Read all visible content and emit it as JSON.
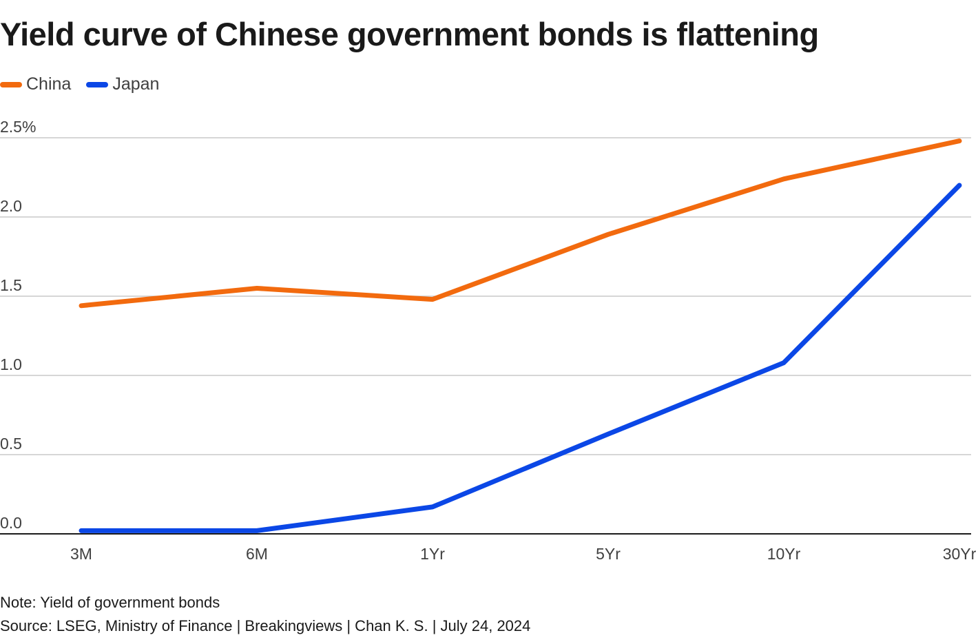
{
  "header": {
    "title": "Yield curve of Chinese government bonds is flattening"
  },
  "legend": [
    {
      "label": "China",
      "color": "#f26a0e"
    },
    {
      "label": "Japan",
      "color": "#0b47e6"
    }
  ],
  "footer": {
    "note": "Note: Yield of government bonds",
    "source": "Source: LSEG, Ministry of Finance | Breakingviews | Chan K. S. | July 24, 2024"
  },
  "chart_data": {
    "type": "line",
    "title": "Yield curve of Chinese government bonds is flattening",
    "xlabel": "",
    "ylabel": "",
    "categories": [
      "3M",
      "6M",
      "1Yr",
      "5Yr",
      "10Yr",
      "30Yr"
    ],
    "y_ticks": [
      0,
      0.5,
      1.0,
      1.5,
      2.0,
      2.5
    ],
    "y_tick_labels": [
      "0.0",
      "0.5",
      "1.0",
      "1.5",
      "2.0",
      "2.5%"
    ],
    "ylim": [
      0,
      2.5
    ],
    "grid": true,
    "legend_position": "top-left",
    "series": [
      {
        "name": "China",
        "color": "#f26a0e",
        "values": [
          1.44,
          1.55,
          1.48,
          1.89,
          2.24,
          2.48
        ]
      },
      {
        "name": "Japan",
        "color": "#0b47e6",
        "values": [
          0.02,
          0.02,
          0.17,
          0.63,
          1.08,
          2.2
        ]
      }
    ]
  }
}
